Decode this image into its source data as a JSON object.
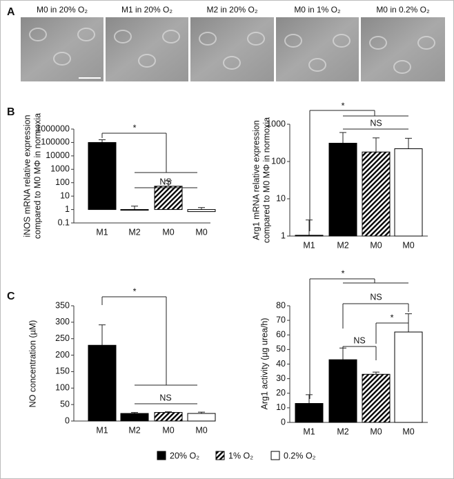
{
  "panels": [
    "A",
    "B",
    "C"
  ],
  "images": [
    {
      "caption": "M0 in 20% O₂"
    },
    {
      "caption": "M1 in 20% O₂"
    },
    {
      "caption": "M2 in 20% O₂"
    },
    {
      "caption": "M0 in 1% O₂"
    },
    {
      "caption": "M0 in 0.2% O₂"
    }
  ],
  "legend": [
    {
      "name": "20% O₂",
      "color": "#000000",
      "hatched": false
    },
    {
      "name": "1% O₂",
      "color": "#000000",
      "hatched": true
    },
    {
      "name": "0.2% O₂",
      "color": "#ffffff",
      "hatched": false
    }
  ],
  "chart_data": [
    {
      "type": "bar",
      "ylabel": [
        "iNOS mRNA relative expression",
        "compared to M0 MΦ in normoxia"
      ],
      "log_scale": true,
      "categories": [
        "M1",
        "M2",
        "M0",
        "M0"
      ],
      "values": [
        100000,
        0.9,
        55,
        0.7
      ],
      "errors": [
        60000,
        0.9,
        85,
        0.7
      ],
      "colors": [
        "#000000",
        "#000000",
        "#000000",
        "#ffffff"
      ],
      "hatched": [
        false,
        false,
        true,
        false
      ],
      "ylim": [
        0.1,
        1000000
      ],
      "yticks": [
        0.1,
        1,
        10,
        100,
        1000,
        10000,
        100000,
        1000000
      ],
      "annotations": [
        "*",
        "NS"
      ]
    },
    {
      "type": "bar",
      "ylabel": [
        "Arg1 mRNA relative expression",
        "compared to M0 MΦ in normoxia"
      ],
      "log_scale": true,
      "categories": [
        "M1",
        "M2",
        "M0",
        "M0"
      ],
      "values": [
        1.05,
        310,
        180,
        220
      ],
      "errors": [
        1.65,
        290,
        250,
        200
      ],
      "colors": [
        "#000000",
        "#000000",
        "#000000",
        "#ffffff"
      ],
      "hatched": [
        false,
        false,
        true,
        false
      ],
      "ylim": [
        1,
        1000
      ],
      "yticks": [
        1,
        10,
        100,
        1000
      ],
      "annotations": [
        "*",
        "NS"
      ]
    },
    {
      "type": "bar",
      "ylabel": [
        "NO concentration (µM)"
      ],
      "log_scale": false,
      "categories": [
        "M1",
        "M2",
        "M0",
        "M0"
      ],
      "values": [
        230,
        23,
        26,
        23
      ],
      "errors": [
        62,
        3,
        2,
        4
      ],
      "colors": [
        "#000000",
        "#000000",
        "#000000",
        "#ffffff"
      ],
      "hatched": [
        false,
        false,
        true,
        false
      ],
      "ylim": [
        0,
        350
      ],
      "yticks": [
        0,
        50,
        100,
        150,
        200,
        250,
        300,
        350
      ],
      "annotations": [
        "*",
        "NS"
      ]
    },
    {
      "type": "bar",
      "ylabel": [
        "Arg1 activity  (µg urea/h)"
      ],
      "log_scale": false,
      "categories": [
        "M1",
        "M2",
        "M0",
        "M0"
      ],
      "values": [
        13,
        43,
        33,
        62
      ],
      "errors": [
        6,
        8,
        1.5,
        12.5
      ],
      "colors": [
        "#000000",
        "#000000",
        "#000000",
        "#ffffff"
      ],
      "hatched": [
        false,
        false,
        true,
        false
      ],
      "ylim": [
        0,
        80
      ],
      "yticks": [
        0,
        10,
        20,
        30,
        40,
        50,
        60,
        70,
        80
      ],
      "annotations": [
        "*",
        "NS",
        "NS",
        "*"
      ]
    }
  ]
}
